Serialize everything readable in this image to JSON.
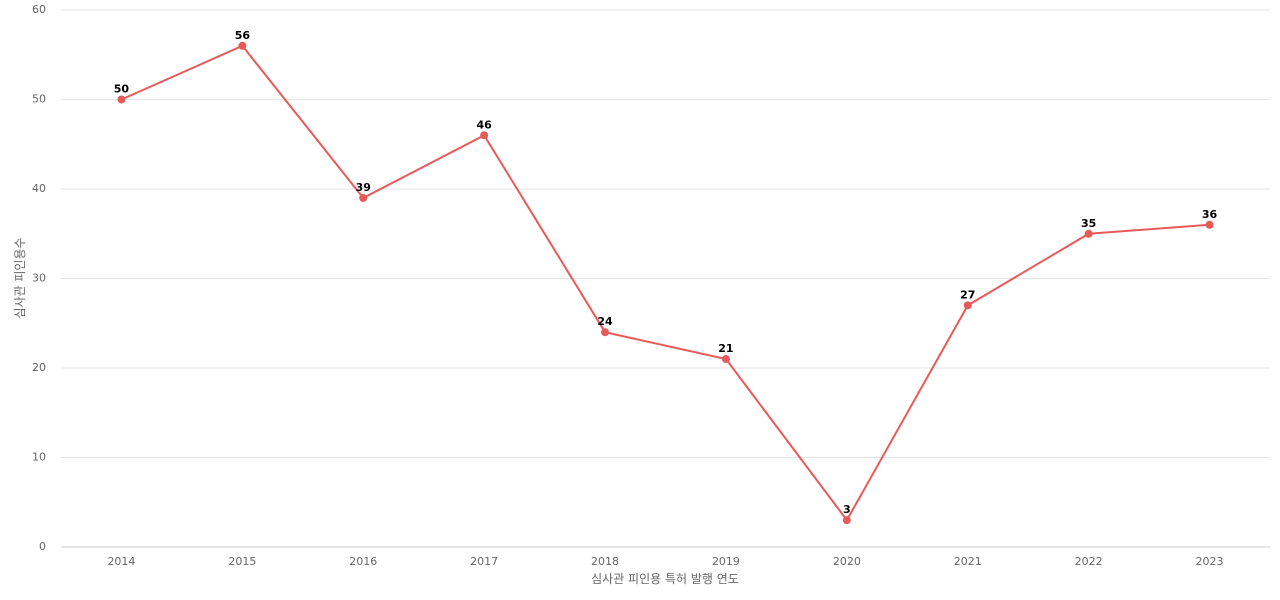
{
  "chart_data": {
    "type": "line",
    "xlabel": "심사관 피인용 특허 발행 연도",
    "ylabel": "심사관 피인용수",
    "categories": [
      "2014",
      "2015",
      "2016",
      "2017",
      "2018",
      "2019",
      "2020",
      "2021",
      "2022",
      "2023"
    ],
    "series": [
      {
        "values": [
          50,
          56,
          39,
          46,
          24,
          21,
          3,
          27,
          35,
          36
        ]
      }
    ],
    "ylim": [
      0,
      60
    ],
    "yticks": [
      0,
      10,
      20,
      30,
      40,
      50,
      60
    ],
    "grid": true,
    "legend": "none",
    "line_color": "#e85a5a"
  }
}
